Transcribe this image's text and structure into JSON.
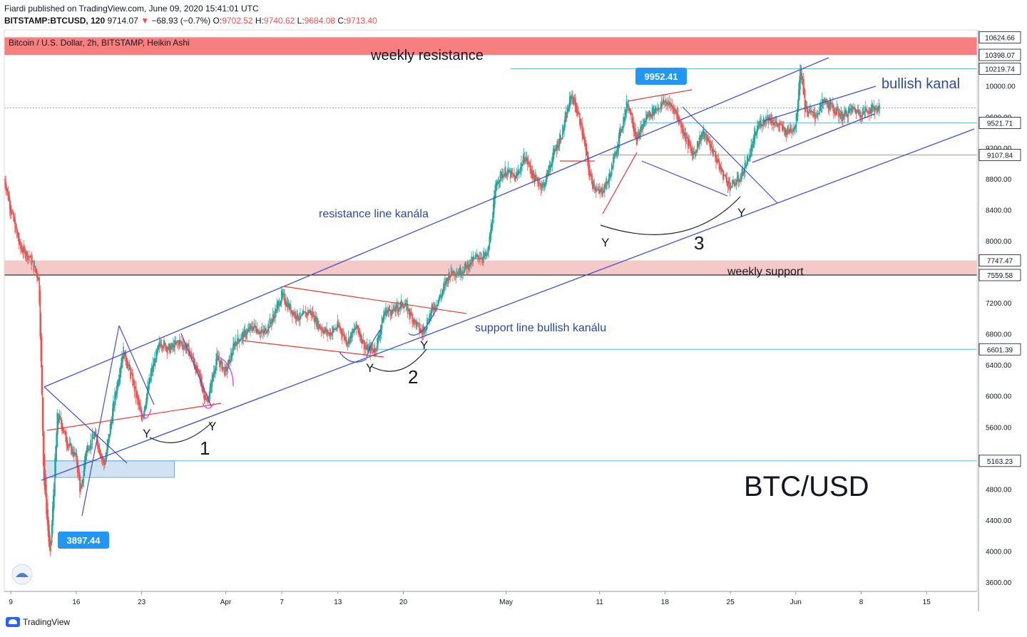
{
  "header": {
    "publisher_line": "Fiardi published on TradingView.com, June 09, 2020 15:41:01 UTC",
    "symbol": "BITSTAMP:BTCUSD, 120",
    "last": "9714.07",
    "change": "−68.93 (−0.7%)",
    "o_label": "O:",
    "o": "9702.52",
    "h_label": "H:",
    "h": "9740.62",
    "l_label": "L:",
    "l": "9684.08",
    "c_label": "C:",
    "c": "9713.40"
  },
  "footer": {
    "brand": "TradingView"
  },
  "colors": {
    "up": "#26a69a",
    "down": "#ef5350",
    "channel": "#3f51d1",
    "trend": "#e53935",
    "resistance_zone": "#f77f7f",
    "support_zone": "#f6c9c9",
    "hline": "#61b6d6",
    "callout": "#2196f3",
    "curve": "#222222",
    "magenta": "#e040fb"
  },
  "chart_data": {
    "type": "candlestick",
    "title": "Bitcoin / U.S. Dollar, 2h, BITSTAMP, Heikin Ashi",
    "watermark": "BTC/USD",
    "ylim": [
      3480,
      10720
    ],
    "y_ticks": [
      3600,
      4000,
      4400,
      4800,
      5200,
      5600,
      6000,
      6400,
      6800,
      7200,
      7600,
      8000,
      8400,
      8800,
      9200,
      9600,
      10000
    ],
    "y_tick_labels": [
      "3600.00",
      "4000.00",
      "4400.00",
      "4800.00",
      "",
      "5600.00",
      "6000.00",
      "6400.00",
      "6800.00",
      "7200.00",
      "",
      "8000.00",
      "8400.00",
      "8800.00",
      "9200.00",
      "9600.00",
      "10000.00"
    ],
    "x_ticks": [
      {
        "label": "9",
        "day": 0
      },
      {
        "label": "16",
        "day": 7
      },
      {
        "label": "23",
        "day": 14
      },
      {
        "label": "Apr",
        "day": 23
      },
      {
        "label": "7",
        "day": 29
      },
      {
        "label": "13",
        "day": 35
      },
      {
        "label": "20",
        "day": 42
      },
      {
        "label": "May",
        "day": 53
      },
      {
        "label": "11",
        "day": 63
      },
      {
        "label": "18",
        "day": 70
      },
      {
        "label": "25",
        "day": 77
      },
      {
        "label": "Jun",
        "day": 84
      },
      {
        "label": "8",
        "day": 91
      },
      {
        "label": "15",
        "day": 98
      }
    ],
    "x_range_days": [
      -0.7,
      103.4
    ],
    "price_series": [
      [
        -0.7,
        8800
      ],
      [
        0,
        8400
      ],
      [
        1,
        7900
      ],
      [
        2,
        7800
      ],
      [
        3,
        7500
      ],
      [
        3.5,
        5000
      ],
      [
        4.2,
        3900
      ],
      [
        5,
        5800
      ],
      [
        6,
        5400
      ],
      [
        7,
        5200
      ],
      [
        7.5,
        4700
      ],
      [
        8,
        5300
      ],
      [
        9,
        5500
      ],
      [
        10,
        5100
      ],
      [
        11,
        5900
      ],
      [
        12,
        6600
      ],
      [
        13,
        6200
      ],
      [
        14,
        5700
      ],
      [
        15,
        6300
      ],
      [
        16,
        6700
      ],
      [
        17,
        6600
      ],
      [
        18,
        6700
      ],
      [
        19,
        6600
      ],
      [
        20,
        6300
      ],
      [
        21,
        5900
      ],
      [
        22,
        6500
      ],
      [
        23,
        6300
      ],
      [
        24,
        6700
      ],
      [
        25,
        6800
      ],
      [
        26,
        6900
      ],
      [
        27,
        6800
      ],
      [
        28,
        7000
      ],
      [
        29,
        7300
      ],
      [
        30,
        7100
      ],
      [
        31,
        7000
      ],
      [
        32,
        7100
      ],
      [
        33,
        6900
      ],
      [
        34,
        6800
      ],
      [
        35,
        6900
      ],
      [
        36,
        6700
      ],
      [
        37,
        6900
      ],
      [
        38,
        6600
      ],
      [
        39,
        6600
      ],
      [
        40,
        7100
      ],
      [
        41,
        7100
      ],
      [
        42,
        7200
      ],
      [
        43,
        7000
      ],
      [
        44,
        6800
      ],
      [
        45,
        7100
      ],
      [
        46,
        7300
      ],
      [
        47,
        7600
      ],
      [
        48,
        7600
      ],
      [
        49,
        7700
      ],
      [
        50,
        7800
      ],
      [
        51,
        7800
      ],
      [
        52,
        8800
      ],
      [
        53,
        8900
      ],
      [
        54,
        8800
      ],
      [
        55,
        9100
      ],
      [
        56,
        8800
      ],
      [
        57,
        8700
      ],
      [
        58,
        9100
      ],
      [
        59,
        9400
      ],
      [
        60,
        9900
      ],
      [
        61,
        9500
      ],
      [
        62,
        8800
      ],
      [
        63,
        8600
      ],
      [
        64,
        8800
      ],
      [
        65,
        9300
      ],
      [
        66,
        9800
      ],
      [
        67,
        9300
      ],
      [
        68,
        9600
      ],
      [
        69,
        9700
      ],
      [
        70,
        9800
      ],
      [
        71,
        9700
      ],
      [
        72,
        9400
      ],
      [
        73,
        9100
      ],
      [
        74,
        9400
      ],
      [
        75,
        9200
      ],
      [
        76,
        8900
      ],
      [
        77,
        8700
      ],
      [
        78,
        8800
      ],
      [
        79,
        9100
      ],
      [
        80,
        9500
      ],
      [
        81,
        9600
      ],
      [
        82,
        9500
      ],
      [
        83,
        9400
      ],
      [
        84,
        9500
      ],
      [
        84.5,
        10300
      ],
      [
        85,
        9700
      ],
      [
        86,
        9600
      ],
      [
        87,
        9800
      ],
      [
        88,
        9700
      ],
      [
        89,
        9600
      ],
      [
        90,
        9700
      ],
      [
        91,
        9650
      ],
      [
        92,
        9700
      ],
      [
        93,
        9714
      ]
    ],
    "zones": [
      {
        "label": "weekly resistance",
        "from": 10398.07,
        "to": 10624.66
      },
      {
        "label": "weekly support",
        "from": 7559.58,
        "to": 7747.47
      }
    ],
    "price_labels": [
      "10624.66",
      "10398.07",
      "10219.74",
      "9521.71",
      "9107.84",
      "7747.47",
      "7559.58",
      "6601.39",
      "5163.23"
    ],
    "current_price": "9714.07",
    "callouts": [
      {
        "text": "9952.41",
        "day": 68,
        "price": 9952.41
      },
      {
        "text": "3897.44",
        "day": 4.2,
        "price": 3897.44
      }
    ],
    "annotations": {
      "resistance_line": "resistance line kanála",
      "support_line": "support line bullish kanálu",
      "bullish": "bullish kanal",
      "y": "Y",
      "n1": "1",
      "n2": "2",
      "n3": "3"
    }
  }
}
